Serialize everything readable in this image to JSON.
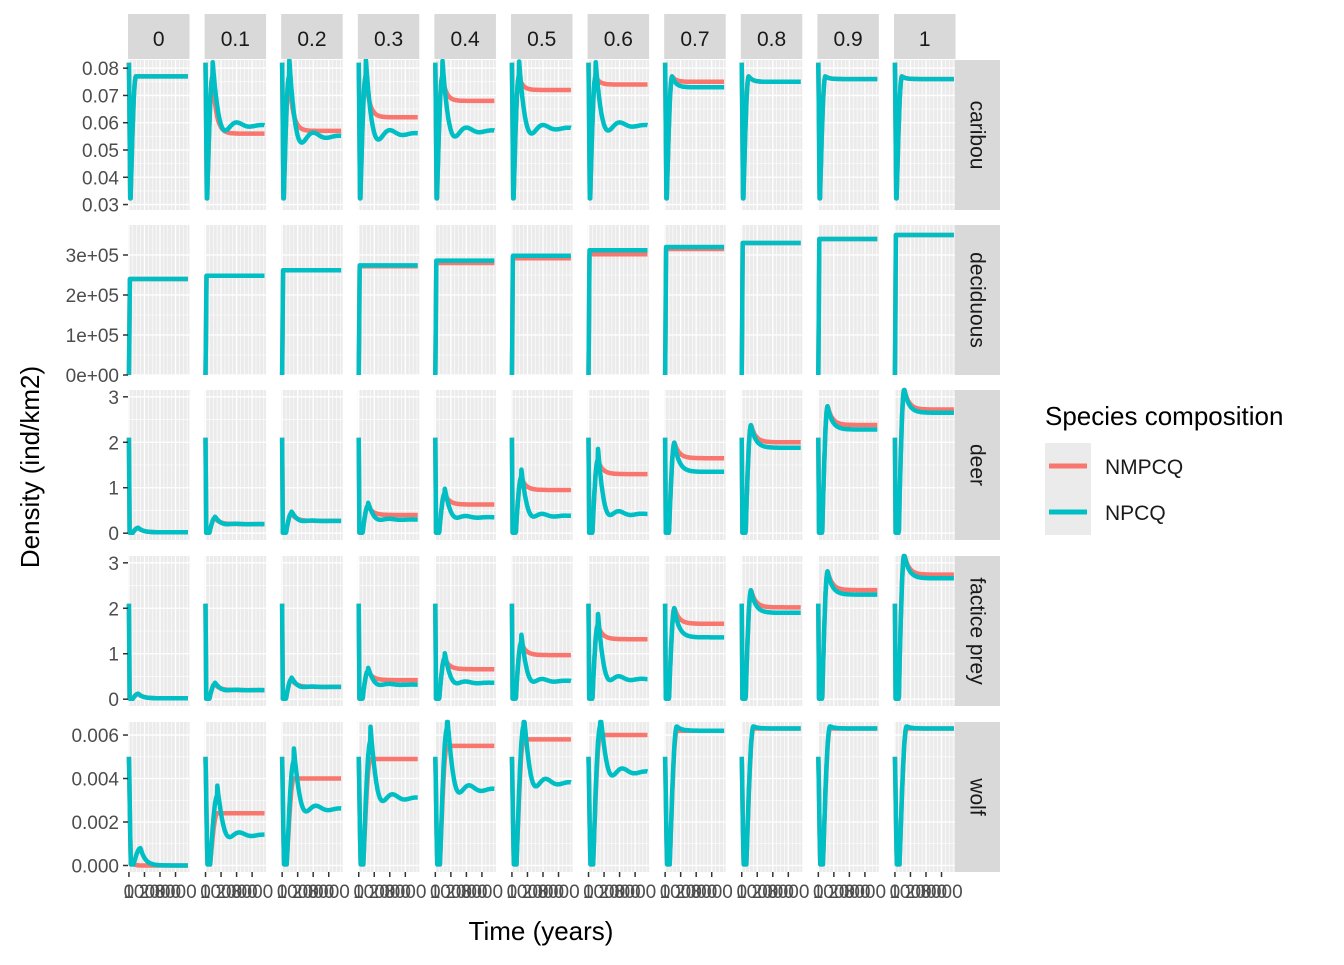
{
  "chart_data": {
    "type": "line",
    "facet_columns": [
      "0",
      "0.1",
      "0.2",
      "0.3",
      "0.4",
      "0.5",
      "0.6",
      "0.7",
      "0.8",
      "0.9",
      "1"
    ],
    "facet_rows": [
      {
        "label": "caribou",
        "ylim": [
          0.028,
          0.083
        ],
        "ticks": [
          0.03,
          0.04,
          0.05,
          0.06,
          0.07,
          0.08
        ],
        "tick_labels": [
          "0.03",
          "0.04",
          "0.05",
          "0.06",
          "0.07",
          "0.08"
        ]
      },
      {
        "label": "deciduous",
        "ylim": [
          0,
          375000
        ],
        "ticks": [
          0,
          100000,
          200000,
          300000
        ],
        "tick_labels": [
          "0e+00",
          "1e+05",
          "2e+05",
          "3e+05"
        ]
      },
      {
        "label": "deer",
        "ylim": [
          -0.15,
          3.15
        ],
        "ticks": [
          0,
          1,
          2,
          3
        ],
        "tick_labels": [
          "0",
          "1",
          "2",
          "3"
        ]
      },
      {
        "label": "factice prey",
        "ylim": [
          -0.15,
          3.15
        ],
        "ticks": [
          0,
          1,
          2,
          3
        ],
        "tick_labels": [
          "0",
          "1",
          "2",
          "3"
        ]
      },
      {
        "label": "wolf",
        "ylim": [
          -0.0003,
          0.0066
        ],
        "ticks": [
          0,
          0.002,
          0.004,
          0.006
        ],
        "tick_labels": [
          "0.000",
          "0.002",
          "0.004",
          "0.006"
        ]
      }
    ],
    "x_tick_labels": [
      "0",
      "1000",
      "2000",
      "3000"
    ],
    "xlabel": "Time (years)",
    "ylabel": "Density (ind/km2)",
    "legend": {
      "title": "Species composition",
      "position": "right"
    },
    "series": [
      {
        "name": "NMPCQ",
        "color": "#F8766D"
      },
      {
        "name": "NPCQ",
        "color": "#00BFC4"
      }
    ],
    "plateau_values": {
      "caribou": {
        "NMPCQ": [
          0.077,
          0.056,
          0.057,
          0.062,
          0.068,
          0.072,
          0.074,
          0.075,
          0.075,
          0.076,
          0.076
        ],
        "NPCQ": [
          0.077,
          0.059,
          0.055,
          0.056,
          0.057,
          0.058,
          0.059,
          0.073,
          0.075,
          0.076,
          0.076
        ]
      },
      "deciduous": {
        "NMPCQ": [
          240000,
          248000,
          262000,
          272000,
          280000,
          292000,
          302000,
          315000,
          330000,
          340000,
          350000
        ],
        "NPCQ": [
          240000,
          248000,
          262000,
          274000,
          286000,
          298000,
          312000,
          320000,
          330000,
          340000,
          350000
        ]
      },
      "deer": {
        "NMPCQ": [
          0.02,
          0.2,
          0.27,
          0.4,
          0.63,
          0.95,
          1.3,
          1.65,
          2.0,
          2.38,
          2.72
        ],
        "NPCQ": [
          0.02,
          0.2,
          0.27,
          0.3,
          0.35,
          0.38,
          0.42,
          1.35,
          1.88,
          2.28,
          2.65
        ]
      },
      "factice prey": {
        "NMPCQ": [
          0.02,
          0.2,
          0.27,
          0.42,
          0.66,
          0.97,
          1.32,
          1.66,
          2.02,
          2.4,
          2.74
        ],
        "NPCQ": [
          0.02,
          0.2,
          0.27,
          0.32,
          0.36,
          0.4,
          0.44,
          1.36,
          1.9,
          2.3,
          2.66
        ]
      },
      "wolf": {
        "NMPCQ": [
          0.0,
          0.0024,
          0.004,
          0.0049,
          0.0055,
          0.0058,
          0.006,
          0.0062,
          0.0063,
          0.0063,
          0.0063
        ],
        "NPCQ": [
          0.0,
          0.0014,
          0.0026,
          0.0031,
          0.0035,
          0.0038,
          0.0043,
          0.0062,
          0.0063,
          0.0063,
          0.0063
        ]
      }
    }
  }
}
